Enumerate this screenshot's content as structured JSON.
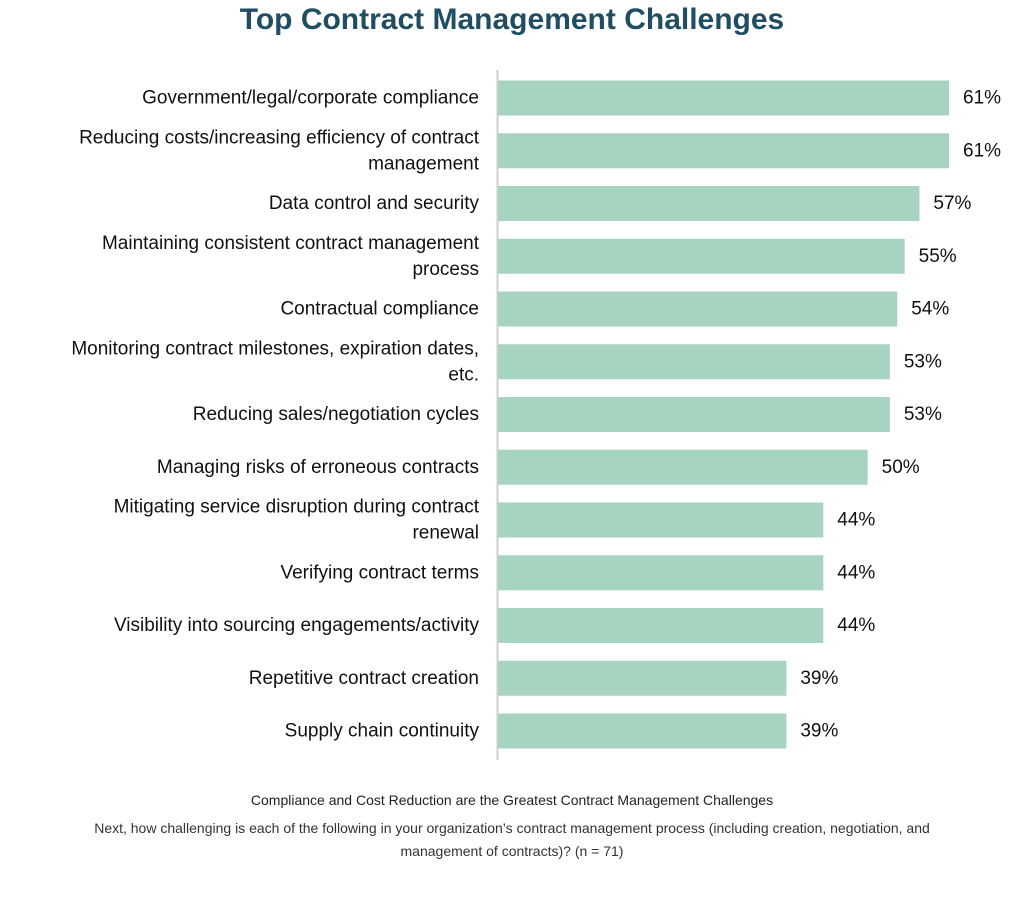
{
  "chart_data": {
    "type": "bar",
    "orientation": "horizontal",
    "title": "Top Contract Management Challenges",
    "categories": [
      [
        "Government/legal/corporate compliance"
      ],
      [
        "Reducing costs/increasing efficiency of contract",
        "management"
      ],
      [
        "Data control and security"
      ],
      [
        "Maintaining consistent contract management",
        "process"
      ],
      [
        "Contractual compliance"
      ],
      [
        "Monitoring contract milestones, expiration dates,",
        "etc."
      ],
      [
        "Reducing sales/negotiation cycles"
      ],
      [
        "Managing risks of erroneous contracts"
      ],
      [
        "Mitigating service disruption during contract",
        "renewal"
      ],
      [
        "Verifying contract terms"
      ],
      [
        "Visibility into sourcing engagements/activity"
      ],
      [
        "Repetitive contract creation"
      ],
      [
        "Supply chain continuity"
      ]
    ],
    "values": [
      61,
      61,
      57,
      55,
      54,
      53,
      53,
      50,
      44,
      44,
      44,
      39,
      39
    ],
    "value_labels": [
      "61%",
      "61%",
      "57%",
      "55%",
      "54%",
      "53%",
      "53%",
      "50%",
      "44%",
      "44%",
      "44%",
      "39%",
      "39%"
    ],
    "unit": "%",
    "xlim": [
      0,
      61
    ],
    "grid": false,
    "bar_color": "#a7d3c1",
    "axis_color": "#cfcfcf"
  },
  "caption": {
    "title": "Compliance and Cost Reduction are the Greatest Contract Management Challenges",
    "note_line1": "Next, how challenging is each of the following in your organization’s contract management process (including creation, negotiation, and",
    "note_line2": "management of contracts)? (n = 71)"
  },
  "colors": {
    "title": "#1f4e63"
  }
}
